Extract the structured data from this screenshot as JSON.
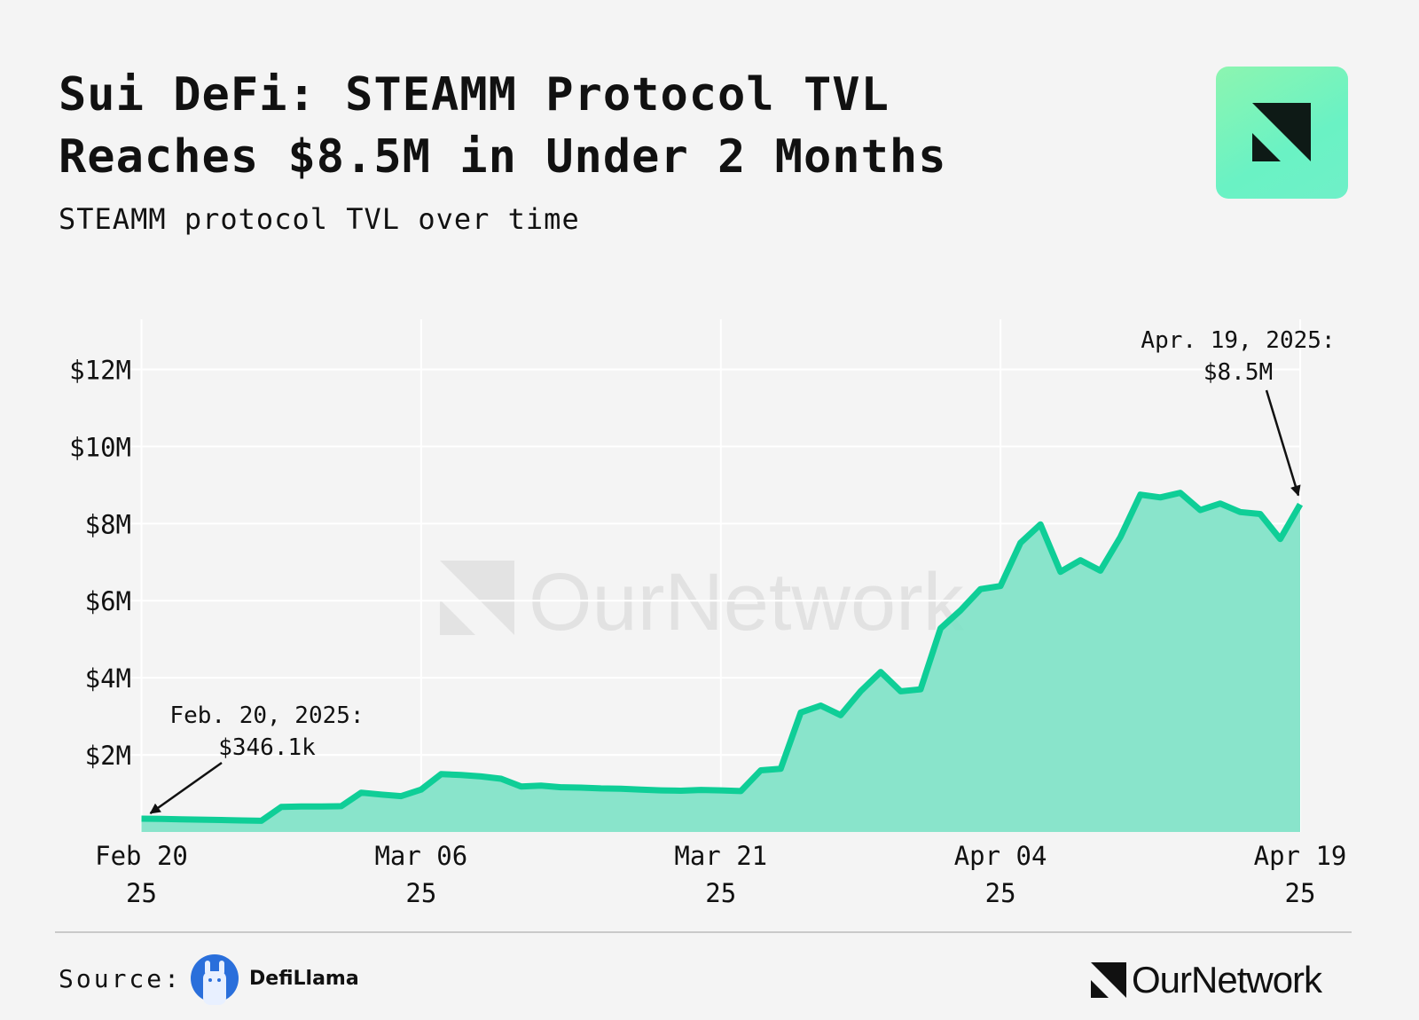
{
  "header": {
    "title_line1": "Sui DeFi: STEAMM Protocol TVL",
    "title_line2": "Reaches $8.5M in Under 2 Months",
    "subtitle": "STEAMM protocol TVL over time"
  },
  "footer": {
    "source_label": "Source:",
    "source_name": "DefiLlama",
    "brand": "OurNetwork"
  },
  "colors": {
    "line": "#0fce97",
    "fill": "#7fe2c7",
    "background": "#f4f4f4"
  },
  "chart_data": {
    "type": "area",
    "title": "STEAMM protocol TVL over time",
    "x_start": "2025-02-20",
    "x_end": "2025-04-19",
    "x_ticks": [
      {
        "day": 0,
        "line1": "Feb 20",
        "line2": "25"
      },
      {
        "day": 14,
        "line1": "Mar 06",
        "line2": "25"
      },
      {
        "day": 29,
        "line1": "Mar 21",
        "line2": "25"
      },
      {
        "day": 43,
        "line1": "Apr 04",
        "line2": "25"
      },
      {
        "day": 58,
        "line1": "Apr 19",
        "line2": "25"
      }
    ],
    "y_ticks": [
      {
        "value": 2,
        "label": "$2M"
      },
      {
        "value": 4,
        "label": "$4M"
      },
      {
        "value": 6,
        "label": "$6M"
      },
      {
        "value": 8,
        "label": "$8M"
      },
      {
        "value": 10,
        "label": "$10M"
      },
      {
        "value": 12,
        "label": "$12M"
      }
    ],
    "ylim": [
      0,
      13.3
    ],
    "xlim": [
      -0.2,
      58
    ],
    "unit": "USD millions",
    "series": [
      {
        "name": "TVL",
        "points": [
          [
            0,
            0.346
          ],
          [
            1,
            0.34
          ],
          [
            2,
            0.33
          ],
          [
            3,
            0.32
          ],
          [
            4,
            0.31
          ],
          [
            5,
            0.3
          ],
          [
            6,
            0.29
          ],
          [
            7,
            0.65
          ],
          [
            8,
            0.66
          ],
          [
            9,
            0.66
          ],
          [
            10,
            0.67
          ],
          [
            11,
            1.02
          ],
          [
            12,
            0.97
          ],
          [
            13,
            0.93
          ],
          [
            14,
            1.1
          ],
          [
            15,
            1.5
          ],
          [
            16,
            1.48
          ],
          [
            17,
            1.44
          ],
          [
            18,
            1.38
          ],
          [
            19,
            1.18
          ],
          [
            20,
            1.2
          ],
          [
            21,
            1.16
          ],
          [
            22,
            1.15
          ],
          [
            23,
            1.13
          ],
          [
            24,
            1.12
          ],
          [
            25,
            1.1
          ],
          [
            26,
            1.08
          ],
          [
            27,
            1.07
          ],
          [
            28,
            1.09
          ],
          [
            29,
            1.08
          ],
          [
            30,
            1.06
          ],
          [
            31,
            1.6
          ],
          [
            32,
            1.64
          ],
          [
            33,
            3.1
          ],
          [
            34,
            3.28
          ],
          [
            35,
            3.03
          ],
          [
            36,
            3.65
          ],
          [
            37,
            4.15
          ],
          [
            38,
            3.65
          ],
          [
            39,
            3.7
          ],
          [
            40,
            5.28
          ],
          [
            41,
            5.75
          ],
          [
            42,
            6.3
          ],
          [
            43,
            6.38
          ],
          [
            44,
            7.5
          ],
          [
            45,
            7.98
          ],
          [
            46,
            6.75
          ],
          [
            47,
            7.05
          ],
          [
            48,
            6.78
          ],
          [
            49,
            7.65
          ],
          [
            50,
            8.75
          ],
          [
            51,
            8.68
          ],
          [
            52,
            8.8
          ],
          [
            53,
            8.35
          ],
          [
            54,
            8.52
          ],
          [
            55,
            8.3
          ],
          [
            56,
            8.25
          ],
          [
            57,
            7.6
          ],
          [
            58,
            8.5
          ]
        ]
      }
    ],
    "annotations": [
      {
        "day": 0,
        "value": 0.346,
        "line1": "Feb. 20, 2025:",
        "line2": "$346.1k"
      },
      {
        "day": 58,
        "value": 8.5,
        "line1": "Apr. 19, 2025:",
        "line2": "$8.5M"
      }
    ],
    "watermark": "OurNetwork"
  }
}
